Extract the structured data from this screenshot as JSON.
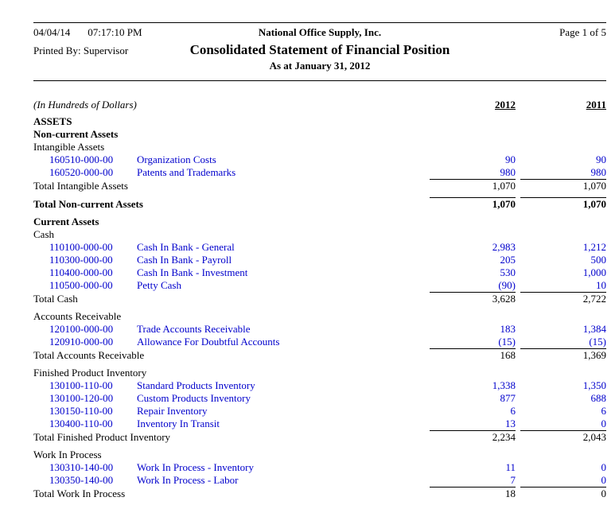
{
  "page": {
    "date": "04/04/14",
    "time": "07:17:10 PM",
    "company": "National Office Supply, Inc.",
    "page_number": "Page 1 of 5",
    "printed_by": "Printed By: Supervisor",
    "title": "Consolidated Statement of Financial Position",
    "subtitle": "As at January 31, 2012"
  },
  "colors": {
    "account_link": "#0000cc",
    "text": "#000000",
    "background": "#ffffff"
  },
  "table": {
    "units_label": "(In Hundreds of Dollars)",
    "col_2012": "2012",
    "col_2011": "2011",
    "rows": [
      {
        "type": "heading",
        "label": "ASSETS"
      },
      {
        "type": "heading",
        "label": "Non-current Assets"
      },
      {
        "type": "group",
        "label": "Intangible Assets"
      },
      {
        "type": "account",
        "code": "160510-000-00",
        "name": "Organization Costs",
        "v2012": "90",
        "v2011": "90"
      },
      {
        "type": "account",
        "code": "160520-000-00",
        "name": "Patents and Trademarks",
        "v2012": "980",
        "v2011": "980"
      },
      {
        "type": "total",
        "label": "Total Intangible Assets",
        "v2012": "1,070",
        "v2011": "1,070"
      },
      {
        "type": "total-bold",
        "label": "Total Non-current Assets",
        "v2012": "1,070",
        "v2011": "1,070"
      },
      {
        "type": "heading",
        "label": "Current Assets"
      },
      {
        "type": "group",
        "label": "Cash"
      },
      {
        "type": "account",
        "code": "110100-000-00",
        "name": "Cash In Bank - General",
        "v2012": "2,983",
        "v2011": "1,212"
      },
      {
        "type": "account",
        "code": "110300-000-00",
        "name": "Cash In Bank - Payroll",
        "v2012": "205",
        "v2011": "500"
      },
      {
        "type": "account",
        "code": "110400-000-00",
        "name": "Cash In Bank - Investment",
        "v2012": "530",
        "v2011": "1,000"
      },
      {
        "type": "account",
        "code": "110500-000-00",
        "name": "Petty Cash",
        "v2012": "(90)",
        "v2011": "10"
      },
      {
        "type": "total",
        "label": "Total Cash",
        "v2012": "3,628",
        "v2011": "2,722"
      },
      {
        "type": "group",
        "label": "Accounts Receivable"
      },
      {
        "type": "account",
        "code": "120100-000-00",
        "name": "Trade Accounts Receivable",
        "v2012": "183",
        "v2011": "1,384"
      },
      {
        "type": "account",
        "code": "120910-000-00",
        "name": "Allowance For Doubtful Accounts",
        "v2012": "(15)",
        "v2011": "(15)"
      },
      {
        "type": "total",
        "label": "Total Accounts Receivable",
        "v2012": "168",
        "v2011": "1,369"
      },
      {
        "type": "group",
        "label": "Finished Product Inventory"
      },
      {
        "type": "account",
        "code": "130100-110-00",
        "name": "Standard Products Inventory",
        "v2012": "1,338",
        "v2011": "1,350"
      },
      {
        "type": "account",
        "code": "130100-120-00",
        "name": "Custom Products Inventory",
        "v2012": "877",
        "v2011": "688"
      },
      {
        "type": "account",
        "code": "130150-110-00",
        "name": "Repair Inventory",
        "v2012": "6",
        "v2011": "6"
      },
      {
        "type": "account",
        "code": "130400-110-00",
        "name": "Inventory In Transit",
        "v2012": "13",
        "v2011": "0"
      },
      {
        "type": "total",
        "label": "Total Finished Product Inventory",
        "v2012": "2,234",
        "v2011": "2,043"
      },
      {
        "type": "group",
        "label": "Work In Process"
      },
      {
        "type": "account",
        "code": "130310-140-00",
        "name": "Work In Process - Inventory",
        "v2012": "11",
        "v2011": "0"
      },
      {
        "type": "account",
        "code": "130350-140-00",
        "name": "Work In Process - Labor",
        "v2012": "7",
        "v2011": "0"
      },
      {
        "type": "total",
        "label": "Total Work In Process",
        "v2012": "18",
        "v2011": "0"
      }
    ]
  }
}
